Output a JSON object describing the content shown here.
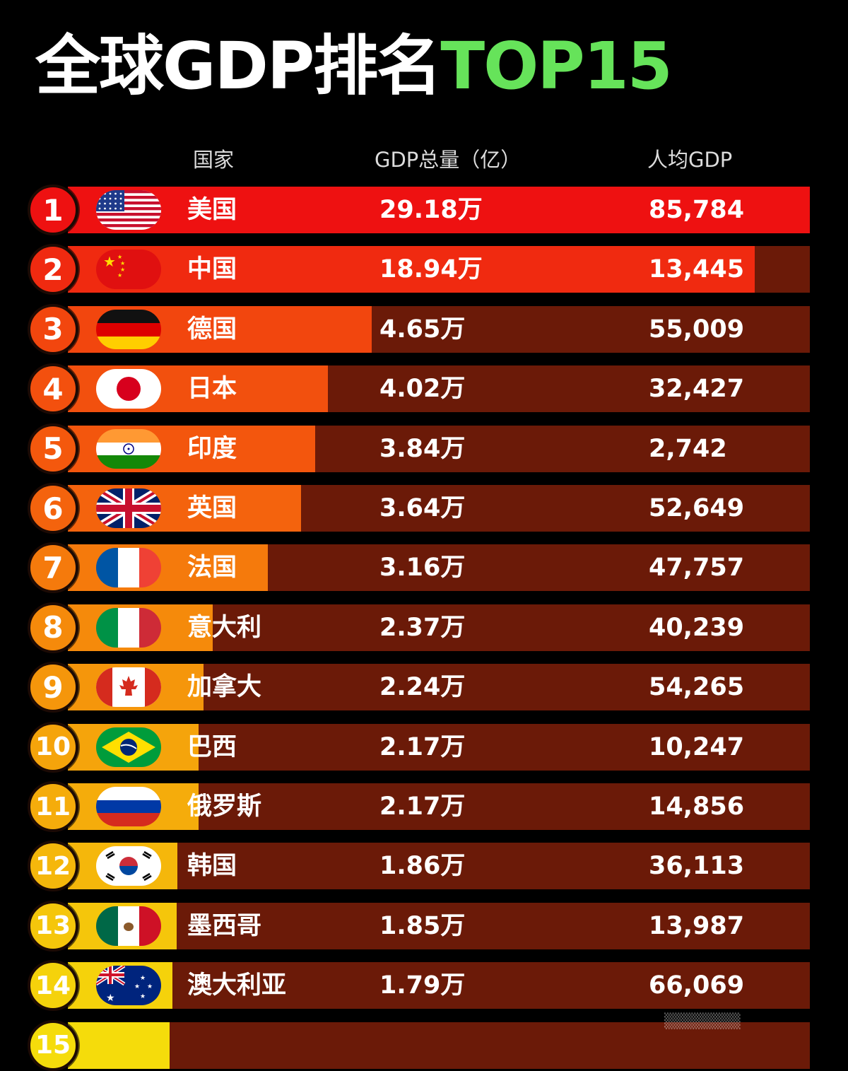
{
  "title": {
    "main": "全球GDP排名",
    "highlight": "TOP15"
  },
  "headers": {
    "country": "国家",
    "gdp": "GDP总量（亿）",
    "per_capita": "人均GDP"
  },
  "colors": {
    "background": "#000000",
    "title_highlight": "#66e35a",
    "track": "#6b1a08",
    "bars": [
      "#ee1111",
      "#f02a10",
      "#f2460e",
      "#f2500e",
      "#f3560d",
      "#f4630d",
      "#f57a0c",
      "#f58a0b",
      "#f5960b",
      "#f5a40b",
      "#f5ac0b",
      "#f5b70b",
      "#f5c60b",
      "#f5d20b",
      "#f5dc0b"
    ]
  },
  "chart_data": {
    "type": "bar",
    "orientation": "horizontal",
    "title": "全球GDP排名TOP15",
    "gdp_unit": "亿",
    "rows": [
      {
        "rank": "1",
        "country": "美国",
        "flag": "usa-flag-icon",
        "gdp": 29.18,
        "gdp_label": "29.18万",
        "per_capita": "85,784"
      },
      {
        "rank": "2",
        "country": "中国",
        "flag": "china-flag-icon",
        "gdp": 18.94,
        "gdp_label": "18.94万",
        "per_capita": "13,445"
      },
      {
        "rank": "3",
        "country": "德国",
        "flag": "germany-flag-icon",
        "gdp": 4.65,
        "gdp_label": "4.65万",
        "per_capita": "55,009"
      },
      {
        "rank": "4",
        "country": "日本",
        "flag": "japan-flag-icon",
        "gdp": 4.02,
        "gdp_label": "4.02万",
        "per_capita": "32,427"
      },
      {
        "rank": "5",
        "country": "印度",
        "flag": "india-flag-icon",
        "gdp": 3.84,
        "gdp_label": "3.84万",
        "per_capita": "2,742"
      },
      {
        "rank": "6",
        "country": "英国",
        "flag": "uk-flag-icon",
        "gdp": 3.64,
        "gdp_label": "3.64万",
        "per_capita": "52,649"
      },
      {
        "rank": "7",
        "country": "法国",
        "flag": "france-flag-icon",
        "gdp": 3.16,
        "gdp_label": "3.16万",
        "per_capita": "47,757"
      },
      {
        "rank": "8",
        "country": "意大利",
        "flag": "italy-flag-icon",
        "gdp": 2.37,
        "gdp_label": "2.37万",
        "per_capita": "40,239"
      },
      {
        "rank": "9",
        "country": "加拿大",
        "flag": "canada-flag-icon",
        "gdp": 2.24,
        "gdp_label": "2.24万",
        "per_capita": "54,265"
      },
      {
        "rank": "10",
        "country": "巴西",
        "flag": "brazil-flag-icon",
        "gdp": 2.17,
        "gdp_label": "2.17万",
        "per_capita": "10,247"
      },
      {
        "rank": "11",
        "country": "俄罗斯",
        "flag": "russia-flag-icon",
        "gdp": 2.17,
        "gdp_label": "2.17万",
        "per_capita": "14,856"
      },
      {
        "rank": "12",
        "country": "韩国",
        "flag": "korea-flag-icon",
        "gdp": 1.86,
        "gdp_label": "1.86万",
        "per_capita": "36,113"
      },
      {
        "rank": "13",
        "country": "墨西哥",
        "flag": "mexico-flag-icon",
        "gdp": 1.85,
        "gdp_label": "1.85万",
        "per_capita": "13,987"
      },
      {
        "rank": "14",
        "country": "澳大利亚",
        "flag": "australia-flag-icon",
        "gdp": 1.79,
        "gdp_label": "1.79万",
        "per_capita": "66,069"
      },
      {
        "rank": "15",
        "country": "",
        "flag": "",
        "gdp": 1.75,
        "gdp_label": "",
        "per_capita": ""
      }
    ]
  }
}
